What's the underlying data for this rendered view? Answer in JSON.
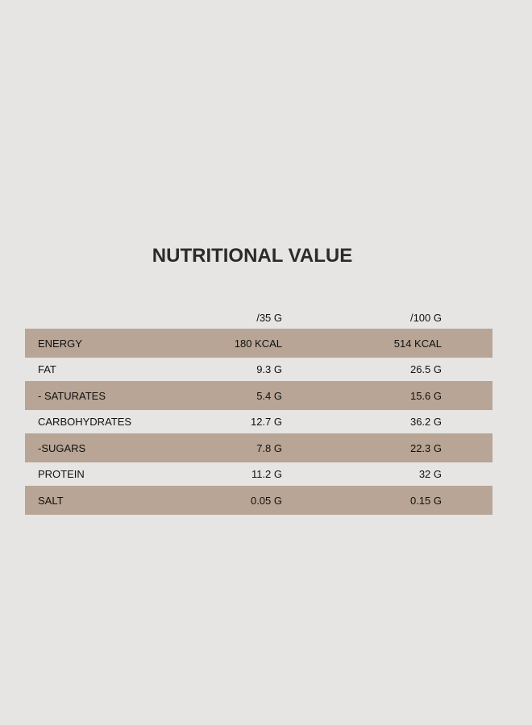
{
  "title": "NUTRITIONAL VALUE",
  "table": {
    "header": [
      "/35 G",
      "/100 G"
    ],
    "rows": [
      [
        "ENERGY",
        "180 KCAL",
        "514 KCAL"
      ],
      [
        "FAT",
        "9.3 G",
        "26.5 G"
      ],
      [
        "- SATURATES",
        "5.4 G",
        "15.6 G"
      ],
      [
        "CARBOHYDRATES",
        "12.7 G",
        "36.2 G"
      ],
      [
        "-SUGARS",
        "7.8 G",
        "22.3 G"
      ],
      [
        "PROTEIN",
        "11.2 G",
        "32 G"
      ],
      [
        "SALT",
        "0.05 G",
        "0.15 G"
      ]
    ]
  }
}
